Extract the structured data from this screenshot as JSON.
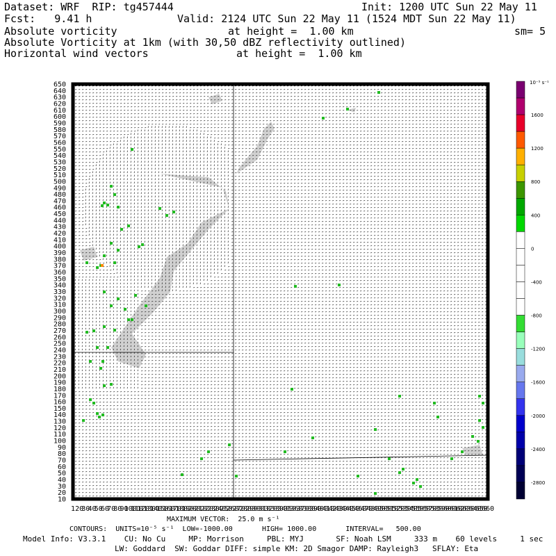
{
  "header": {
    "dataset": "Dataset: WRF  RIP: tg457444",
    "init": "Init: 1200 UTC Sun 22 May 11",
    "fcst": "Fcst:   9.41 h",
    "valid": "Valid: 2124 UTC Sun 22 May 11 (1524 MDT Sun 22 May 11)",
    "line3_left": "Absolute vorticity",
    "line3_mid": "at height =  1.00 km",
    "line3_right": "sm= 5",
    "line4": "Absolute Vorticity at 1km (with 30,50 dBZ reflectivity outlined)",
    "line5_left": "Horizontal wind vectors",
    "line5_mid": "at height =  1.00 km"
  },
  "y_axis_labels": [
    "650",
    "640",
    "630",
    "620",
    "610",
    "600",
    "590",
    "580",
    "570",
    "560",
    "550",
    "540",
    "530",
    "520",
    "510",
    "500",
    "490",
    "480",
    "470",
    "460",
    "450",
    "440",
    "430",
    "420",
    "410",
    "400",
    "390",
    "380",
    "370",
    "360",
    "350",
    "340",
    "330",
    "320",
    "310",
    "300",
    "290",
    "280",
    "270",
    "260",
    "250",
    "240",
    "230",
    "220",
    "210",
    "200",
    "190",
    "180",
    "170",
    "160",
    "150",
    "140",
    "130",
    "120",
    "110",
    "100",
    "90",
    "80",
    "70",
    "60",
    "50",
    "40",
    "30",
    "20",
    "10"
  ],
  "x_axis_labels": [
    "1",
    "20",
    "30",
    "40",
    "50",
    "60",
    "70",
    "80",
    "90",
    "100",
    "110",
    "120",
    "130",
    "140",
    "150",
    "160",
    "170",
    "180",
    "190",
    "200",
    "210",
    "220",
    "230",
    "240",
    "250",
    "260",
    "270",
    "280",
    "290",
    "300",
    "310",
    "320",
    "330",
    "340",
    "350",
    "360",
    "370",
    "380",
    "390",
    "400",
    "410",
    "420",
    "430",
    "440",
    "450",
    "460",
    "470",
    "480",
    "490",
    "500",
    "510",
    "520",
    "530",
    "540",
    "550",
    "560",
    "570",
    "580",
    "590",
    "600",
    "610",
    "620",
    "630",
    "640",
    "650",
    "660"
  ],
  "colorbar": {
    "unit_label": "10⁻⁵ s⁻¹",
    "colors": [
      "#7a0070",
      "#b0006e",
      "#e8002a",
      "#ff5a00",
      "#ffb000",
      "#c8d000",
      "#3c9600",
      "#00a800",
      "#00d800",
      "#ffffff",
      "#ffffff",
      "#ffffff",
      "#ffffff",
      "#ffffff",
      "#33dd33",
      "#99ffbb",
      "#99dddd",
      "#99aaee",
      "#6677ee",
      "#3333ee",
      "#0000cc",
      "#0000aa",
      "#000077",
      "#000055",
      "#000033"
    ],
    "labels": [
      "1600",
      "1200",
      "800",
      "400",
      "0",
      "-400",
      "-800",
      "-1200",
      "-1600",
      "-2000",
      "-2400",
      "-2800"
    ]
  },
  "footer": {
    "max_vector": "MAXIMUM VECTOR:  25.0 m s⁻¹",
    "contours": "CONTOURS:  UNITS=10⁻⁵ s⁻¹  LOW=-1000.00       HIGH= 1000.00       INTERVAL=   500.00",
    "model_info": "Model Info: V3.3.1    CU: No Cu     MP: Morrison     PBL: MYJ       SF: Noah LSM     333 m    60 levels     1 sec",
    "model_info2": "LW: Goddard  SW: Goddar DIFF: simple KM: 2D Smagor DAMP: Rayleigh3   SFLAY: Eta"
  },
  "map": {
    "vector_color": "#000000",
    "vorticity_positive_color": "#22bb22",
    "reflectivity_shade_color": "#c8c8c8"
  }
}
